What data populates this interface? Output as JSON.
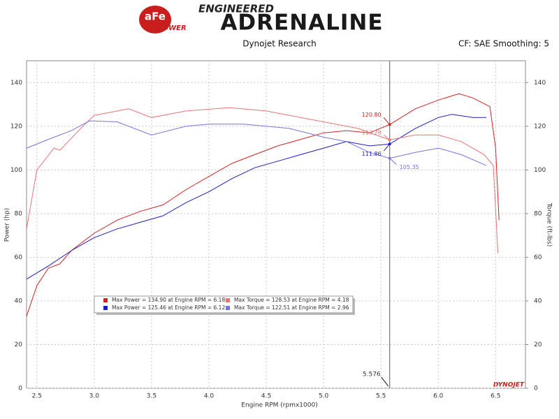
{
  "header": {
    "logo_mark": "aFe",
    "logo_sub": "POWER",
    "brand_top": "ENGINEERED",
    "brand": "ADRENALINE",
    "source": "Dynojet Research",
    "settings": "CF: SAE Smoothing: 5"
  },
  "chart_data": {
    "type": "line",
    "xlabel": "Engine RPM (rpmx1000)",
    "ylabel": "Power (hp)",
    "y2label": "Torque (ft-lbs)",
    "watermark": "DYNOJET",
    "xlim": [
      2.41,
      6.76
    ],
    "xticks": [
      2.5,
      {
        "value": 3,
        "label": "3.0"
      },
      3.5,
      {
        "value": 4,
        "label": "4.0"
      },
      4.5,
      {
        "value": 5,
        "label": "5.0"
      },
      5.5,
      {
        "value": 6,
        "label": "6.0"
      },
      6.5
    ],
    "ylim": [
      0,
      150
    ],
    "yticks": [
      0,
      20,
      40,
      60,
      80,
      100,
      120,
      140
    ],
    "y2lim": [
      0,
      150
    ],
    "y2ticks": [
      0,
      20,
      40,
      60,
      80,
      100,
      120,
      140
    ],
    "grid": true,
    "cursor": 5.576,
    "series": [
      {
        "name": "Max Power = 134.90 at Engine RPM = 6.18",
        "color": "#d42222",
        "axis": "y",
        "x": [
          2.41,
          2.5,
          2.6,
          2.7,
          2.8,
          3.0,
          3.2,
          3.4,
          3.6,
          3.8,
          4.0,
          4.2,
          4.4,
          4.6,
          4.8,
          5.0,
          5.2,
          5.4,
          5.576,
          5.8,
          6.0,
          6.18,
          6.3,
          6.45,
          6.5,
          6.53
        ],
        "values": [
          33,
          47,
          55,
          57,
          63,
          71,
          77,
          81,
          84,
          91,
          97,
          103,
          107,
          111,
          114,
          117,
          118,
          117,
          120.8,
          128,
          132,
          134.9,
          133,
          129,
          110,
          77
        ],
        "cursor_value": {
          "value": 120.8,
          "label": "120.80"
        }
      },
      {
        "name": "Max Power = 125.46 at Engine RPM = 6.12",
        "color": "#1c1cc8",
        "axis": "y",
        "x": [
          2.41,
          2.6,
          2.8,
          3.0,
          3.2,
          3.4,
          3.6,
          3.8,
          4.0,
          4.2,
          4.4,
          4.6,
          4.8,
          5.0,
          5.2,
          5.4,
          5.576,
          5.8,
          6.0,
          6.12,
          6.3,
          6.42
        ],
        "values": [
          50,
          56,
          63,
          69,
          73,
          76,
          79,
          85,
          90,
          96,
          101,
          104,
          107,
          110,
          113,
          111,
          111.86,
          119,
          124,
          125.46,
          124,
          124
        ],
        "cursor_value": {
          "value": 111.86,
          "label": "111.86"
        }
      },
      {
        "name": "Max Torque = 128.53 at Engine RPM = 4.18",
        "color": "#e87474",
        "axis": "y2",
        "x": [
          2.41,
          2.5,
          2.65,
          2.7,
          2.9,
          3.0,
          3.3,
          3.5,
          3.8,
          4.18,
          4.5,
          5.0,
          5.3,
          5.576,
          5.8,
          6.0,
          6.2,
          6.4,
          6.48,
          6.52
        ],
        "values": [
          73,
          100,
          110,
          109,
          120,
          125,
          128,
          124,
          127,
          128.53,
          127,
          122,
          119,
          113.78,
          116,
          116,
          113,
          107,
          102,
          62
        ],
        "cursor_value": {
          "value": 113.78,
          "label": "113.78"
        }
      },
      {
        "name": "Max Torque = 122.51 at Engine RPM = 2.96",
        "color": "#7474e2",
        "axis": "y2",
        "x": [
          2.41,
          2.6,
          2.8,
          2.96,
          3.2,
          3.5,
          3.8,
          4.0,
          4.3,
          4.7,
          5.0,
          5.2,
          5.4,
          5.576,
          5.8,
          6.0,
          6.2,
          6.42
        ],
        "values": [
          110,
          114,
          118,
          122.51,
          122,
          116,
          120,
          121,
          121,
          119,
          115,
          113,
          108,
          105.35,
          108,
          110,
          107,
          102
        ],
        "cursor_value": {
          "value": 105.35,
          "label": "105.35"
        }
      }
    ]
  }
}
